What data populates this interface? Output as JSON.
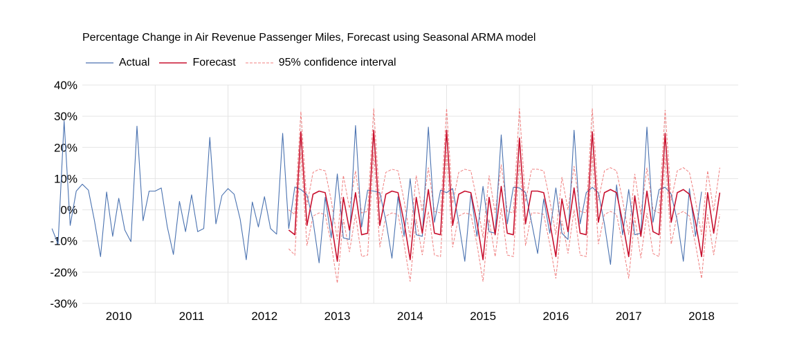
{
  "chart_data": {
    "type": "line",
    "title": "Percentage Change in Air Revenue Passenger Miles, Forecast using Seasonal ARMA model",
    "ylim": [
      -30,
      40
    ],
    "y_ticks": [
      40,
      30,
      20,
      10,
      0,
      -10,
      -20,
      -30
    ],
    "y_tick_labels": [
      "40%",
      "30%",
      "20%",
      "10%",
      "0%",
      "-10%",
      "-20%",
      "-30%"
    ],
    "x_categories": [
      "2010",
      "2011",
      "2012",
      "2013",
      "2014",
      "2015",
      "2016",
      "2017",
      "2018"
    ],
    "grid": true,
    "legend_position": "top-left",
    "colors": {
      "actual": "#4a72b0",
      "forecast": "#c8102e",
      "ci": "#f08080",
      "grid": "#e4e4e4"
    },
    "series": [
      {
        "name": "Actual",
        "start": "2009-08",
        "values": [
          -6,
          -11,
          28.5,
          -5,
          6,
          8.2,
          6.3,
          -3.5,
          -15,
          5.7,
          -8.5,
          3.7,
          -6.5,
          -10.2,
          26.8,
          -3.5,
          6,
          6,
          7,
          -5.5,
          -14.3,
          2.7,
          -7,
          4.8,
          -7,
          -6,
          23.2,
          -4.5,
          4.6,
          6.8,
          5,
          -3,
          -16,
          2.5,
          -5.5,
          4.2,
          -6,
          -7.8,
          24.5,
          -6,
          7.3,
          6.5,
          4.8,
          -3.5,
          -17,
          4,
          -9,
          11.5,
          -9,
          -9.5,
          27,
          -5.5,
          6.3,
          6,
          5.5,
          -3.5,
          -15.5,
          4.2,
          -8.5,
          10,
          -8,
          -8.5,
          26.5,
          -4,
          6.3,
          5.5,
          6.8,
          -4,
          -16.5,
          5.2,
          -8.5,
          7.5,
          -7,
          -7.5,
          24,
          -4.5,
          7.2,
          7,
          5.5,
          -4,
          -14,
          3.5,
          -7.5,
          7,
          -7.5,
          -9.5,
          25.5,
          -4.5,
          5.5,
          7.2,
          5.5,
          -4.5,
          -17.5,
          8,
          -8,
          6.5,
          -8,
          -7.5,
          26.5,
          -4,
          6.5,
          7.2,
          5,
          -3.5,
          -16.5,
          6.8,
          -8.5,
          5.8
        ]
      },
      {
        "name": "Forecast",
        "start": "2012-11",
        "values": [
          -6.5,
          -8,
          25,
          -5,
          5,
          6,
          5.5,
          -4,
          -16.5,
          4,
          -6.5,
          5.5,
          -8,
          -7.5,
          25.5,
          -5,
          5,
          6,
          5.5,
          -4,
          -16,
          4,
          -7.5,
          6.5,
          -7.5,
          -8,
          25.5,
          -5,
          5,
          6,
          5.5,
          -4,
          -16,
          4,
          -8,
          7.5,
          -7.5,
          -8,
          23,
          -4.5,
          6,
          6,
          5.5,
          -4,
          -15,
          3.5,
          -7,
          7,
          -7.5,
          -8,
          25,
          -4,
          5.5,
          6.5,
          5.5,
          -4,
          -15,
          4.5,
          -8.5,
          6,
          -7,
          -8,
          24.5,
          -4,
          5.5,
          6.5,
          5,
          -4,
          -15,
          5.5,
          -7.5,
          5.5
        ]
      },
      {
        "name": "95% confidence interval",
        "start": "2012-11",
        "upper": [
          0,
          -1.5,
          31.5,
          1.5,
          12,
          13,
          12.5,
          3,
          -9.5,
          11,
          0.5,
          12.5,
          -1,
          -0.5,
          32.5,
          2,
          12,
          13,
          12.5,
          3,
          -9,
          11,
          -0.5,
          13.5,
          -0.5,
          -1,
          32.5,
          2,
          12,
          13,
          12.5,
          3,
          -9,
          11,
          -1,
          14.5,
          -0.5,
          -1,
          32.5,
          2.5,
          13,
          13,
          12.5,
          3,
          -8,
          10.5,
          0,
          14,
          -0.5,
          -1,
          32.5,
          3,
          12.5,
          13.5,
          12.5,
          3,
          -8,
          11.5,
          -1.5,
          13.5,
          0,
          -1,
          32,
          3,
          12.5,
          13.5,
          12,
          3,
          -8,
          12.5,
          -0.5,
          13.5
        ],
        "lower": [
          -12.5,
          -14.5,
          18.5,
          -11.5,
          -2,
          -1,
          -1.5,
          -11,
          -23.5,
          -3,
          -13.5,
          -1.5,
          -15,
          -14.5,
          18.5,
          -12,
          -2,
          -1,
          -1.5,
          -11,
          -23,
          -3,
          -14.5,
          -0.5,
          -14.5,
          -15,
          18.5,
          -12,
          -2,
          -1,
          -1.5,
          -11,
          -23,
          -3,
          -15,
          0.5,
          -14.5,
          -15,
          16,
          -11.5,
          -1,
          -1,
          -1.5,
          -11,
          -22,
          -3.5,
          -14,
          0,
          -14.5,
          -15,
          18,
          -11,
          -1.5,
          -0.5,
          -1.5,
          -11,
          -22,
          -2.5,
          -15.5,
          -1,
          -14,
          -15,
          17.5,
          -11,
          -1.5,
          -0.5,
          -2,
          -11,
          -22,
          -1.5,
          -14.5,
          -1.5
        ]
      }
    ]
  }
}
